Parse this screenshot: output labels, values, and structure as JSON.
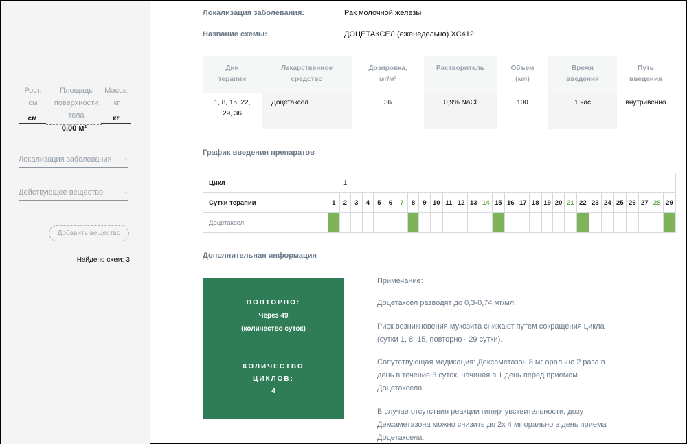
{
  "sidebar": {
    "height_label": "Рост, см",
    "bsa_label": "Площадь поверхности тела",
    "weight_label": "Масса, кг",
    "height_unit": "см",
    "weight_unit": "кг",
    "bsa_value": "0.00 м²",
    "localization_select": "Локализация заболевания",
    "substance_select": "Действующее вещество",
    "add_button": "Добавить вещество",
    "found_label": "Найдено схем:",
    "found_count": "3"
  },
  "info": {
    "localization_key": "Локализация заболевания:",
    "localization_value": "Рак молочной железы",
    "scheme_key": "Название схемы:",
    "scheme_value": "ДОЦЕТАКСЕЛ (еженедельно) XC412"
  },
  "drug_table": {
    "headers": {
      "days_line1": "Дни",
      "days_line2": "терапии",
      "drug_line1": "Лекарственное",
      "drug_line2": "средство",
      "dose_line1": "Дозировка,",
      "dose_line2": "мг/м²",
      "solvent": "Растворитель",
      "volume_line1": "Объем",
      "volume_line2": "(мл)",
      "time_line1": "Время",
      "time_line2": "введения",
      "route_line1": "Путь",
      "route_line2": "введения"
    },
    "row": {
      "days_line1": "1, 8, 15, 22,",
      "days_line2": "29, 36",
      "drug": "Доцетаксел",
      "dose": "36",
      "solvent": "0,9% NaCl",
      "volume": "100",
      "time": "1 час",
      "route": "внутривенно"
    }
  },
  "schedule": {
    "title": "График введения препаратов",
    "cycle_label": "Цикл",
    "cycle_value": "1",
    "days_label": "Сутки терапии",
    "drug_label": "Доцетаксел",
    "days": [
      1,
      2,
      3,
      4,
      5,
      6,
      7,
      8,
      9,
      10,
      11,
      12,
      13,
      14,
      15,
      16,
      17,
      18,
      19,
      20,
      21,
      22,
      23,
      24,
      25,
      26,
      27,
      28,
      29
    ],
    "highlight_days": [
      7,
      14,
      21,
      28
    ],
    "dose_days": [
      1,
      8,
      15,
      22,
      29
    ]
  },
  "additional": {
    "title": "Дополнительная информация",
    "repeat_label": "ПОВТОРНО:",
    "repeat_value": "Через 49",
    "repeat_unit": "(количество суток)",
    "cycles_label_line1": "КОЛИЧЕСТВО",
    "cycles_label_line2": "ЦИКЛОВ:",
    "cycles_value": "4",
    "notes": [
      "Примечание:",
      "Доцетаксел разводят до 0,3-0,74 мг/мл.",
      "Риск возникновения мукозита снижают путем сокращения цикла (сутки 1, 8, 15, повторно - 29 сутки).",
      "Сопутствующая медикация: Дексаметазон 8 мг орально 2 раза в день в течение 3 суток, начиная в 1 день перед приемом Доцетаксела.",
      "В случае отсутствия реакции гиперчувствительности, дозу Дексаметазона можно снизить до 2х 4 мг орально в день приема Доцетаксела."
    ]
  },
  "colors": {
    "accent_green": "#2e7d57",
    "dose_mark": "#7fb35a",
    "highlight_day": "#6aa84f"
  }
}
